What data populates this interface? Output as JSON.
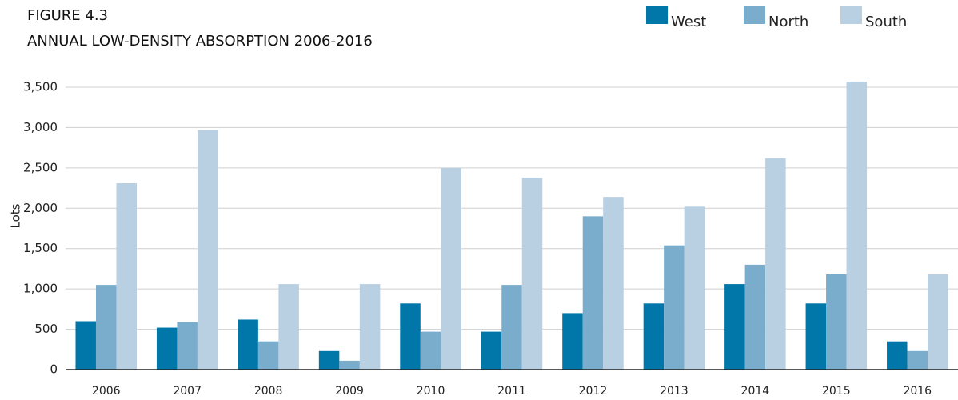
{
  "chart_data": {
    "type": "bar",
    "title": "FIGURE 4.3",
    "subtitle": "ANNUAL LOW-DENSITY ABSORPTION 2006-2016",
    "y_label": "Lots",
    "categories": [
      "2006",
      "2007",
      "2008",
      "2009",
      "2010",
      "2011",
      "2012",
      "2013",
      "2014",
      "2015",
      "2016"
    ],
    "series": [
      {
        "name": "West",
        "color": "#0077a8",
        "values": [
          600,
          520,
          620,
          230,
          820,
          470,
          700,
          820,
          1060,
          820,
          350
        ]
      },
      {
        "name": "North",
        "color": "#7aaccc",
        "values": [
          1050,
          590,
          350,
          110,
          470,
          1050,
          1900,
          1540,
          1300,
          1180,
          230
        ]
      },
      {
        "name": "South",
        "color": "#b9cfe2",
        "values": [
          2310,
          2970,
          1060,
          1060,
          2500,
          2380,
          2140,
          2020,
          2620,
          3570,
          1180
        ]
      }
    ],
    "ylim": [
      0,
      3600
    ],
    "yticks": [
      0,
      500,
      {
        "value": 1000,
        "label": "1,000"
      },
      {
        "value": 1500,
        "label": "1,500"
      },
      {
        "value": 2000,
        "label": "2,000"
      },
      {
        "value": 2500,
        "label": "2,500"
      },
      {
        "value": 3000,
        "label": "3,000"
      },
      {
        "value": 3500,
        "label": "3,500"
      }
    ],
    "grid": true,
    "legend": "top-right"
  }
}
